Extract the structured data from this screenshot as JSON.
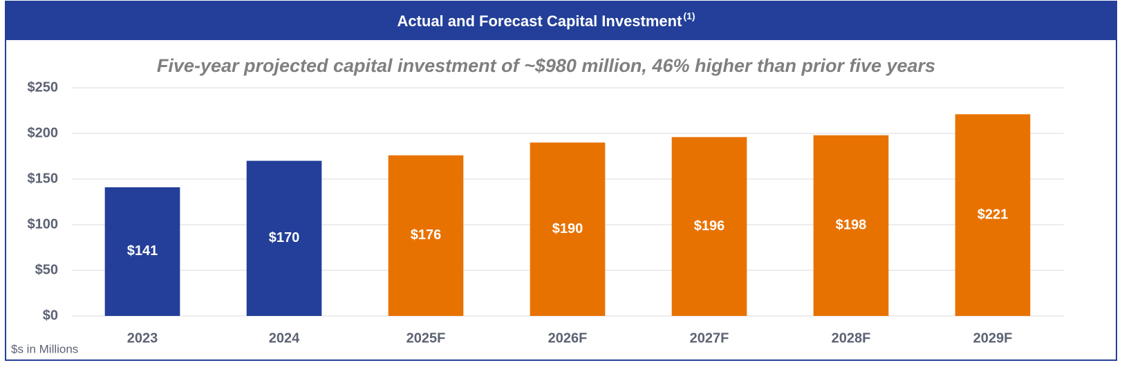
{
  "chart_data": {
    "type": "bar",
    "title": "Actual and Forecast Capital Investment",
    "title_note": "(1)",
    "subtitle": "Five-year projected capital investment of ~$980 million, 46% higher than prior five years",
    "footnote": "$s in Millions",
    "categories": [
      "2023",
      "2024",
      "2025F",
      "2026F",
      "2027F",
      "2028F",
      "2029F"
    ],
    "values": [
      141,
      170,
      176,
      190,
      196,
      198,
      221
    ],
    "value_labels": [
      "$141",
      "$170",
      "$176",
      "$190",
      "$196",
      "$198",
      "$221"
    ],
    "colors": [
      "#233f99",
      "#233f99",
      "#e87200",
      "#e87200",
      "#e87200",
      "#e87200",
      "#e87200"
    ],
    "ylim": [
      0,
      250
    ],
    "yticks": [
      {
        "value": 0,
        "label": "$0"
      },
      {
        "value": 50,
        "label": "$50"
      },
      {
        "value": 100,
        "label": "$100"
      },
      {
        "value": 150,
        "label": "$150"
      },
      {
        "value": 200,
        "label": "$200"
      },
      {
        "value": 250,
        "label": "$250"
      }
    ],
    "grid": true
  }
}
